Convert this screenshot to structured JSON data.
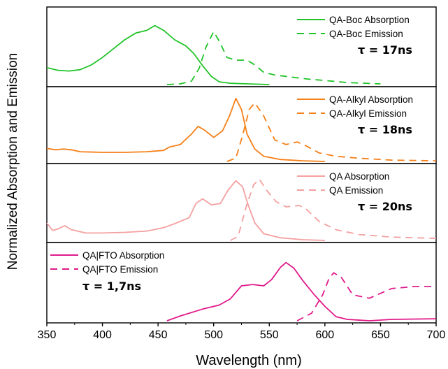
{
  "chart_data": {
    "type": "line",
    "xlabel": "Wavelength (nm)",
    "ylabel": "Normalized Absorption and Emission",
    "xlim": [
      350,
      700
    ],
    "x_ticks": [
      "350",
      "400",
      "450",
      "500",
      "550",
      "600",
      "650",
      "700"
    ],
    "y_ticks_shown": false,
    "panels": [
      {
        "color": "#22c42a",
        "tau_label": "τ = 17ns",
        "legend_position": "top-right",
        "series": [
          {
            "name": "QA-Boc Absorption",
            "style": "solid",
            "points": [
              [
                350,
                0.25
              ],
              [
                360,
                0.21
              ],
              [
                370,
                0.2
              ],
              [
                380,
                0.22
              ],
              [
                390,
                0.29
              ],
              [
                400,
                0.4
              ],
              [
                410,
                0.53
              ],
              [
                420,
                0.66
              ],
              [
                430,
                0.76
              ],
              [
                440,
                0.8
              ],
              [
                447,
                0.87
              ],
              [
                455,
                0.8
              ],
              [
                465,
                0.66
              ],
              [
                475,
                0.57
              ],
              [
                482,
                0.46
              ],
              [
                490,
                0.28
              ],
              [
                498,
                0.12
              ],
              [
                505,
                0.04
              ],
              [
                515,
                0.02
              ],
              [
                530,
                0.01
              ],
              [
                550,
                0.0
              ]
            ]
          },
          {
            "name": "QA-Boc Emission",
            "style": "dashed",
            "points": [
              [
                458,
                0.0
              ],
              [
                470,
                0.01
              ],
              [
                480,
                0.05
              ],
              [
                487,
                0.24
              ],
              [
                493,
                0.55
              ],
              [
                500,
                0.78
              ],
              [
                505,
                0.64
              ],
              [
                512,
                0.4
              ],
              [
                520,
                0.36
              ],
              [
                530,
                0.36
              ],
              [
                537,
                0.29
              ],
              [
                545,
                0.18
              ],
              [
                555,
                0.14
              ],
              [
                570,
                0.11
              ],
              [
                585,
                0.08
              ],
              [
                600,
                0.06
              ],
              [
                620,
                0.03
              ],
              [
                650,
                0.01
              ]
            ]
          }
        ]
      },
      {
        "color": "#f57f17",
        "tau_label": "τ = 18ns",
        "legend_position": "top-right",
        "series": [
          {
            "name": "QA-Alkyl Absorption",
            "style": "solid",
            "points": [
              [
                350,
                0.2
              ],
              [
                358,
                0.18
              ],
              [
                365,
                0.19
              ],
              [
                372,
                0.18
              ],
              [
                380,
                0.15
              ],
              [
                400,
                0.14
              ],
              [
                420,
                0.14
              ],
              [
                440,
                0.15
              ],
              [
                455,
                0.17
              ],
              [
                460,
                0.22
              ],
              [
                470,
                0.26
              ],
              [
                480,
                0.42
              ],
              [
                486,
                0.54
              ],
              [
                492,
                0.48
              ],
              [
                500,
                0.37
              ],
              [
                508,
                0.47
              ],
              [
                514,
                0.69
              ],
              [
                520,
                0.97
              ],
              [
                525,
                0.8
              ],
              [
                530,
                0.42
              ],
              [
                537,
                0.19
              ],
              [
                545,
                0.08
              ],
              [
                560,
                0.03
              ],
              [
                580,
                0.01
              ],
              [
                600,
                0.0
              ]
            ]
          },
          {
            "name": "QA-Alkyl Emission",
            "style": "dashed",
            "points": [
              [
                512,
                0.0
              ],
              [
                520,
                0.05
              ],
              [
                526,
                0.4
              ],
              [
                532,
                0.8
              ],
              [
                537,
                0.9
              ],
              [
                545,
                0.7
              ],
              [
                555,
                0.33
              ],
              [
                565,
                0.26
              ],
              [
                575,
                0.3
              ],
              [
                583,
                0.24
              ],
              [
                595,
                0.13
              ],
              [
                610,
                0.08
              ],
              [
                630,
                0.05
              ],
              [
                660,
                0.02
              ],
              [
                700,
                0.01
              ]
            ]
          }
        ]
      },
      {
        "color": "#f4a0a0",
        "tau_label": "τ = 20ns",
        "legend_position": "top-right",
        "series": [
          {
            "name": "QA Absorption",
            "style": "solid",
            "points": [
              [
                350,
                0.26
              ],
              [
                355,
                0.15
              ],
              [
                360,
                0.17
              ],
              [
                366,
                0.22
              ],
              [
                372,
                0.16
              ],
              [
                385,
                0.11
              ],
              [
                400,
                0.11
              ],
              [
                420,
                0.12
              ],
              [
                440,
                0.14
              ],
              [
                455,
                0.19
              ],
              [
                465,
                0.25
              ],
              [
                478,
                0.34
              ],
              [
                484,
                0.55
              ],
              [
                490,
                0.62
              ],
              [
                498,
                0.53
              ],
              [
                506,
                0.55
              ],
              [
                513,
                0.75
              ],
              [
                520,
                0.89
              ],
              [
                526,
                0.8
              ],
              [
                531,
                0.53
              ],
              [
                537,
                0.26
              ],
              [
                545,
                0.1
              ],
              [
                560,
                0.04
              ],
              [
                580,
                0.01
              ],
              [
                600,
                0.0
              ]
            ]
          },
          {
            "name": "QA Emission",
            "style": "dashed",
            "points": [
              [
                515,
                0.0
              ],
              [
                522,
                0.06
              ],
              [
                530,
                0.55
              ],
              [
                536,
                0.83
              ],
              [
                541,
                0.91
              ],
              [
                548,
                0.74
              ],
              [
                556,
                0.58
              ],
              [
                565,
                0.5
              ],
              [
                577,
                0.52
              ],
              [
                583,
                0.47
              ],
              [
                595,
                0.28
              ],
              [
                610,
                0.16
              ],
              [
                630,
                0.09
              ],
              [
                660,
                0.05
              ],
              [
                700,
                0.03
              ]
            ]
          }
        ]
      },
      {
        "color": "#e0198a",
        "tau_label": "τ = 1,7ns",
        "legend_position": "top-left",
        "series": [
          {
            "name": "QA|FTO Absorption",
            "style": "solid",
            "points": [
              [
                458,
                0.0
              ],
              [
                470,
                0.07
              ],
              [
                490,
                0.17
              ],
              [
                505,
                0.23
              ],
              [
                515,
                0.32
              ],
              [
                525,
                0.51
              ],
              [
                535,
                0.53
              ],
              [
                545,
                0.51
              ],
              [
                552,
                0.6
              ],
              [
                560,
                0.78
              ],
              [
                565,
                0.85
              ],
              [
                572,
                0.77
              ],
              [
                580,
                0.59
              ],
              [
                590,
                0.39
              ],
              [
                600,
                0.21
              ],
              [
                610,
                0.06
              ],
              [
                620,
                0.02
              ],
              [
                640,
                0.0
              ],
              [
                660,
                0.02
              ],
              [
                700,
                0.03
              ]
            ]
          },
          {
            "name": "QA|FTO Emission",
            "style": "dashed",
            "points": [
              [
                575,
                0.0
              ],
              [
                588,
                0.11
              ],
              [
                598,
                0.38
              ],
              [
                604,
                0.63
              ],
              [
                608,
                0.7
              ],
              [
                615,
                0.63
              ],
              [
                625,
                0.38
              ],
              [
                640,
                0.33
              ],
              [
                660,
                0.47
              ],
              [
                680,
                0.5
              ],
              [
                700,
                0.5
              ]
            ]
          }
        ]
      }
    ]
  }
}
